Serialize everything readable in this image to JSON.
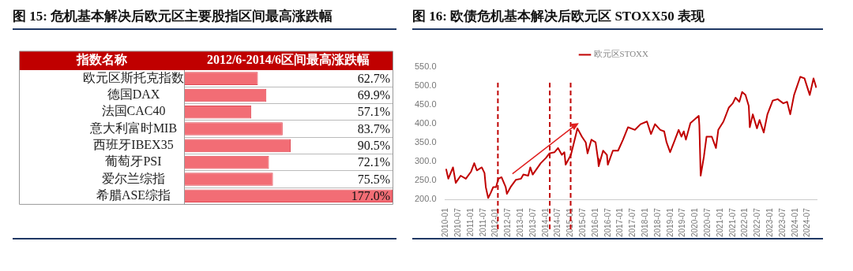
{
  "chart_data": [
    {
      "type": "bar",
      "orientation": "horizontal",
      "title": "图 15: 危机基本解决后欧元区主要股指区间最高涨跌幅",
      "ylabel": "指数名称",
      "xlabel": "2012/6-2014/6区间最高涨跌幅",
      "categories": [
        "欧元区斯托克指数",
        "德国DAX",
        "法国CAC40",
        "意大利富时MIB",
        "西班牙IBEX35",
        "葡萄牙PSI",
        "爱尔兰综指",
        "希腊ASE综指"
      ],
      "values": [
        62.7,
        69.9,
        57.1,
        83.7,
        90.5,
        72.1,
        75.5,
        177.0
      ],
      "value_labels": [
        "62.7%",
        "69.9%",
        "57.1%",
        "83.7%",
        "90.5%",
        "72.1%",
        "75.5%",
        "177.0%"
      ],
      "color": "#f26d75",
      "tick_labels": "y",
      "grid": "y",
      "legend": false
    },
    {
      "type": "line",
      "title": "图 16: 欧债危机基本解决后欧元区 STOXX50 表现",
      "x": [
        "2010-01-04",
        "2010-02-05",
        "2010-04-15",
        "2010-05-25",
        "2010-08-05",
        "2010-10-20",
        "2011-01-05",
        "2011-02-20",
        "2011-03-30",
        "2011-06-10",
        "2011-07-20",
        "2011-08-08",
        "2011-09-12",
        "2011-10-20",
        "2011-11-25",
        "2012-01-05",
        "2012-02-08",
        "2012-03-25",
        "2012-05-25",
        "2012-06-12",
        "2012-08-05",
        "2012-10-20",
        "2013-01-05",
        "2013-02-08",
        "2013-04-20",
        "2013-05-20",
        "2013-06-25",
        "2013-10-20",
        "2014-01-05",
        "2014-02-25",
        "2014-05-10",
        "2014-07-01",
        "2014-08-25",
        "2014-10-01",
        "2014-10-20",
        "2015-01-05",
        "2015-02-10",
        "2015-04-10",
        "2015-06-15",
        "2015-08-10",
        "2015-09-05",
        "2015-11-01",
        "2016-01-01",
        "2016-02-05",
        "2016-02-15",
        "2016-04-20",
        "2016-06-15",
        "2016-06-28",
        "2016-09-10",
        "2016-11-25",
        "2017-02-05",
        "2017-04-20",
        "2017-07-30",
        "2017-10-20",
        "2018-01-22",
        "2018-03-22",
        "2018-05-20",
        "2018-08-05",
        "2018-10-01",
        "2018-11-05",
        "2018-12-27",
        "2019-03-01",
        "2019-05-01",
        "2019-06-10",
        "2019-07-15",
        "2019-08-15",
        "2019-10-20",
        "2020-02-19",
        "2020-02-28",
        "2020-03-18",
        "2020-05-05",
        "2020-06-12",
        "2020-08-28",
        "2020-10-28",
        "2020-12-01",
        "2021-02-15",
        "2021-05-05",
        "2021-07-01",
        "2021-08-10",
        "2021-10-05",
        "2021-11-15",
        "2022-01-03",
        "2022-02-20",
        "2022-03-07",
        "2022-04-20",
        "2022-06-20",
        "2022-07-28",
        "2022-09-27",
        "2022-11-20",
        "2023-02-05",
        "2023-04-20",
        "2023-07-10",
        "2023-09-05",
        "2023-10-20",
        "2023-12-15",
        "2024-03-15",
        "2024-05-15",
        "2024-08-01",
        "2024-09-25",
        "2024-11-05"
      ],
      "series": [
        {
          "name": "欧元区STOXX",
          "color": "#c00000",
          "values": [
            281,
            255,
            285,
            244,
            263,
            255,
            274,
            296,
            277,
            285,
            270,
            233,
            204,
            218,
            233,
            233,
            255,
            259,
            233,
            215,
            233,
            252,
            255,
            266,
            263,
            285,
            266,
            296,
            310,
            322,
            325,
            336,
            318,
            325,
            292,
            318,
            344,
            388,
            366,
            351,
            322,
            358,
            351,
            307,
            288,
            329,
            318,
            292,
            329,
            329,
            358,
            391,
            384,
            399,
            406,
            373,
            399,
            384,
            380,
            351,
            325,
            355,
            384,
            366,
            380,
            358,
            402,
            421,
            395,
            263,
            314,
            366,
            366,
            336,
            384,
            406,
            443,
            454,
            469,
            458,
            484,
            476,
            447,
            391,
            425,
            388,
            410,
            377,
            425,
            461,
            465,
            454,
            458,
            425,
            476,
            524,
            520,
            476,
            520,
            495
          ]
        }
      ],
      "xlim": [
        "2009-12-20",
        "2024-11-10"
      ],
      "xticks": [
        "2010-01",
        "2010-07",
        "2011-01",
        "2011-07",
        "2012-01",
        "2012-07",
        "2013-01",
        "2013-07",
        "2014-01",
        "2014-07",
        "2015-01",
        "2015-07",
        "2016-01",
        "2016-07",
        "2017-01",
        "2017-07",
        "2018-01",
        "2018-07",
        "2019-01",
        "2019-07",
        "2020-01",
        "2020-07",
        "2021-01",
        "2021-07",
        "2022-01",
        "2022-07",
        "2023-01",
        "2023-07",
        "2024-01",
        "2024-07"
      ],
      "ylim": [
        200,
        550
      ],
      "yticks": [
        {
          "value": 200,
          "label": "200.0"
        },
        {
          "value": 250,
          "label": "250.0"
        },
        {
          "value": 300,
          "label": "300.0"
        },
        {
          "value": 350,
          "label": "350.0"
        },
        {
          "value": 400,
          "label": "400.0"
        },
        {
          "value": 450,
          "label": "450.0"
        },
        {
          "value": 500,
          "label": "500.0"
        },
        {
          "value": 550,
          "label": "550.0"
        }
      ],
      "ref_lines": [
        {
          "axis": "x",
          "value": "2012-02",
          "color": "#c00000",
          "line_style": "dashed"
        },
        {
          "axis": "x",
          "value": "2014-03",
          "color": "#c00000",
          "line_style": "dashed"
        },
        {
          "axis": "x",
          "value": "2015-01",
          "color": "#c00000",
          "line_style": "dashed"
        }
      ],
      "grid": false,
      "legend": "top",
      "marker": "none",
      "line_style": "solid"
    }
  ]
}
